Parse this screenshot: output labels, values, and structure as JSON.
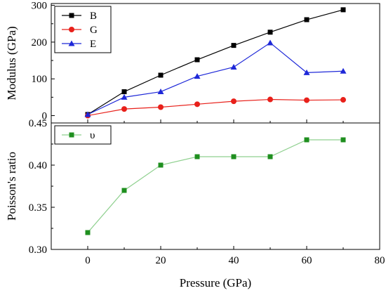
{
  "chart_data": [
    {
      "type": "line",
      "panel": "top",
      "x": [
        0,
        10,
        20,
        30,
        40,
        50,
        60,
        70
      ],
      "xlim": [
        -10,
        80
      ],
      "ylim": [
        -20,
        305
      ],
      "yticks": [
        0,
        100,
        200,
        300
      ],
      "ylabel": "Modulus (GPa)",
      "legend_position": "top-left",
      "series": [
        {
          "name": "B",
          "color": "#000000",
          "marker": "square",
          "values": [
            3,
            65,
            110,
            152,
            191,
            227,
            261,
            288
          ]
        },
        {
          "name": "G",
          "color": "#e8201a",
          "marker": "circle",
          "values": [
            0,
            18,
            23,
            31,
            39,
            44,
            42,
            43
          ]
        },
        {
          "name": "E",
          "color": "#1e28d8",
          "marker": "triangle",
          "values": [
            3,
            50,
            65,
            107,
            132,
            198,
            117,
            121
          ]
        }
      ]
    },
    {
      "type": "line",
      "panel": "bottom",
      "x": [
        0,
        10,
        20,
        30,
        40,
        50,
        60,
        70
      ],
      "xlim": [
        -10,
        80
      ],
      "ylim": [
        0.3,
        0.45
      ],
      "yticks": [
        0.3,
        0.35,
        0.4,
        0.45
      ],
      "ytick_labels": [
        "0.30",
        "0.35",
        "0.40",
        "0.45"
      ],
      "ylabel": "Poisson's ratio",
      "xlabel": "Pressure (GPa)",
      "xticks": [
        0,
        20,
        40,
        60,
        80
      ],
      "legend_position": "top-left",
      "series": [
        {
          "name": "υ",
          "color": "#1f8f1f",
          "line_color": "#8fd08f",
          "marker": "square",
          "values": [
            0.32,
            0.37,
            0.4,
            0.41,
            0.41,
            0.41,
            0.43,
            0.43
          ]
        }
      ]
    }
  ]
}
